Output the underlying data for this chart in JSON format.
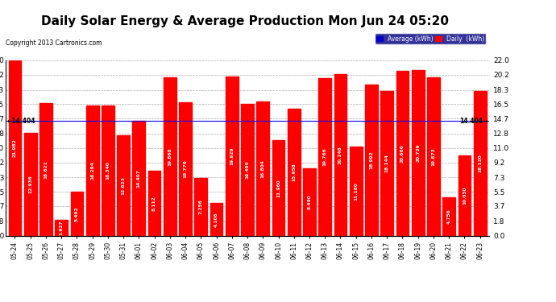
{
  "title": "Daily Solar Energy & Average Production Mon Jun 24 05:20",
  "copyright": "Copyright 2013 Cartronics.com",
  "categories": [
    "05-24",
    "05-25",
    "05-26",
    "05-27",
    "05-28",
    "05-29",
    "05-30",
    "05-31",
    "06-01",
    "06-02",
    "06-03",
    "06-04",
    "06-05",
    "06-06",
    "06-07",
    "06-08",
    "06-09",
    "06-10",
    "06-11",
    "06-12",
    "06-13",
    "06-14",
    "06-15",
    "06-16",
    "06-17",
    "06-18",
    "06-19",
    "06-20",
    "06-21",
    "06-22",
    "06-23"
  ],
  "values": [
    21.982,
    12.936,
    16.621,
    1.927,
    5.492,
    16.294,
    16.34,
    12.623,
    14.407,
    8.112,
    19.868,
    16.776,
    7.256,
    4.106,
    19.929,
    16.499,
    16.804,
    11.96,
    15.958,
    8.49,
    19.766,
    20.248,
    11.18,
    18.992,
    18.144,
    20.666,
    20.739,
    19.873,
    4.756,
    10.03,
    18.12
  ],
  "average_line": 14.404,
  "bar_color": "#ff0000",
  "average_line_color": "#0000ff",
  "background_color": "#ffffff",
  "plot_bg_color": "#ffffff",
  "grid_color": "#aaaaaa",
  "yticks": [
    0.0,
    1.8,
    3.7,
    5.5,
    7.3,
    9.2,
    11.0,
    12.8,
    14.7,
    16.5,
    18.3,
    20.2,
    22.0
  ],
  "ylim": [
    0.0,
    22.0
  ],
  "title_fontsize": 11,
  "legend_avg_color": "#0000cc",
  "legend_daily_color": "#ff0000",
  "avg_label": "Average (kWh)",
  "daily_label": "Daily  (kWh)"
}
